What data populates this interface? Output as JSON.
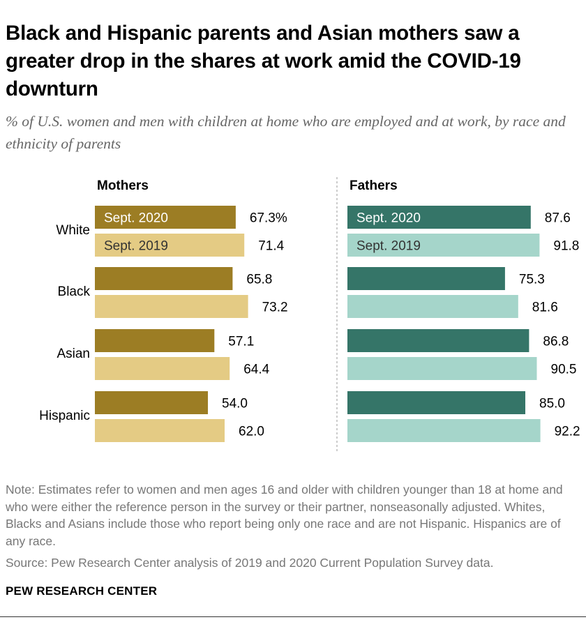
{
  "title": "Black and Hispanic parents and Asian mothers saw a greater drop in the shares at work amid the COVID-19 downturn",
  "subtitle": "% of U.S. women and men with children at home who are employed and at work, by race and ethnicity of parents",
  "chart_data": {
    "type": "bar",
    "orientation": "horizontal",
    "categories": [
      "White",
      "Black",
      "Asian",
      "Hispanic"
    ],
    "panels": [
      {
        "name": "Mothers",
        "series": [
          {
            "name": "Sept. 2020",
            "color": "#9c7d24",
            "values": [
              67.3,
              65.8,
              57.1,
              54.0
            ],
            "labels": [
              "67.3%",
              "65.8",
              "57.1",
              "54.0"
            ]
          },
          {
            "name": "Sept. 2019",
            "color": "#e4cb84",
            "values": [
              71.4,
              73.2,
              64.4,
              62.0
            ],
            "labels": [
              "71.4",
              "73.2",
              "64.4",
              "62.0"
            ]
          }
        ]
      },
      {
        "name": "Fathers",
        "series": [
          {
            "name": "Sept. 2020",
            "color": "#357568",
            "values": [
              87.6,
              75.3,
              86.8,
              85.0
            ],
            "labels": [
              "87.6",
              "75.3",
              "86.8",
              "85.0"
            ]
          },
          {
            "name": "Sept. 2019",
            "color": "#a5d5ca",
            "values": [
              91.8,
              81.6,
              90.5,
              92.2
            ],
            "labels": [
              "91.8",
              "81.6",
              "90.5",
              "92.2"
            ]
          }
        ]
      }
    ],
    "xlim": [
      0,
      100
    ]
  },
  "note": "Note: Estimates refer to women and men ages 16 and older with children younger than 18 at home and who were either the reference person in the survey or their partner, nonseasonally adjusted. Whites, Blacks and Asians include those who report being only one race and are not Hispanic. Hispanics are of any race.",
  "source": "Source: Pew Research Center analysis of 2019 and 2020 Current Population Survey data.",
  "brand": "PEW RESEARCH CENTER"
}
